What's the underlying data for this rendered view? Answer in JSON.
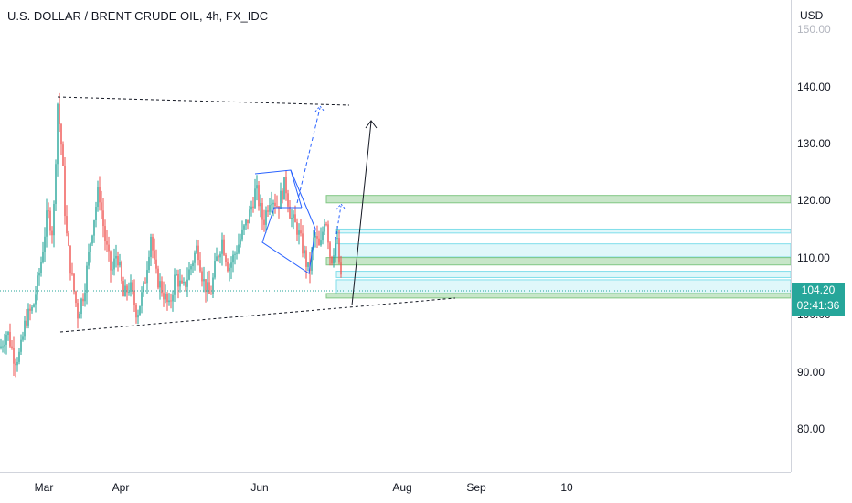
{
  "title": "U.S. DOLLAR / BRENT CRUDE OIL, 4h, FX_IDC",
  "currency": "USD",
  "current_price": "104.20",
  "countdown": "02:41:36",
  "colors": {
    "up": "#26a69a",
    "down": "#ef5350",
    "zone_green": "#a5d6a7",
    "zone_blue": "#b2ebf2",
    "accent": "#2962ff"
  },
  "chart_data": {
    "type": "candlestick",
    "title": "U.S. DOLLAR / BRENT CRUDE OIL, 4h, FX_IDC",
    "ylim": [
      73,
      153
    ],
    "y_ticks": [
      "140.00",
      "130.00",
      "120.00",
      "110.00",
      "100.00",
      "90.00",
      "80.00"
    ],
    "x_ticks": [
      "Mar",
      "Apr",
      "Jun",
      "Aug",
      "Sep",
      "10"
    ],
    "close_path": [
      {
        "t": 0,
        "v": 94
      },
      {
        "t": 8,
        "v": 97
      },
      {
        "t": 16,
        "v": 92
      },
      {
        "t": 22,
        "v": 93
      },
      {
        "t": 28,
        "v": 99
      },
      {
        "t": 36,
        "v": 101
      },
      {
        "t": 44,
        "v": 108
      },
      {
        "t": 52,
        "v": 118
      },
      {
        "t": 58,
        "v": 114
      },
      {
        "t": 63,
        "v": 137
      },
      {
        "t": 68,
        "v": 128
      },
      {
        "t": 72,
        "v": 115
      },
      {
        "t": 78,
        "v": 107
      },
      {
        "t": 85,
        "v": 100
      },
      {
        "t": 92,
        "v": 104
      },
      {
        "t": 100,
        "v": 114
      },
      {
        "t": 108,
        "v": 122
      },
      {
        "t": 115,
        "v": 113
      },
      {
        "t": 122,
        "v": 107
      },
      {
        "t": 128,
        "v": 111
      },
      {
        "t": 135,
        "v": 103
      },
      {
        "t": 142,
        "v": 105
      },
      {
        "t": 150,
        "v": 100
      },
      {
        "t": 158,
        "v": 105
      },
      {
        "t": 165,
        "v": 114
      },
      {
        "t": 170,
        "v": 107
      },
      {
        "t": 178,
        "v": 104
      },
      {
        "t": 185,
        "v": 101
      },
      {
        "t": 192,
        "v": 107
      },
      {
        "t": 200,
        "v": 104
      },
      {
        "t": 208,
        "v": 108
      },
      {
        "t": 216,
        "v": 112
      },
      {
        "t": 222,
        "v": 106
      },
      {
        "t": 230,
        "v": 103
      },
      {
        "t": 236,
        "v": 109
      },
      {
        "t": 243,
        "v": 113
      },
      {
        "t": 250,
        "v": 108
      },
      {
        "t": 258,
        "v": 111
      },
      {
        "t": 265,
        "v": 114
      },
      {
        "t": 272,
        "v": 117
      },
      {
        "t": 280,
        "v": 122
      },
      {
        "t": 288,
        "v": 116
      },
      {
        "t": 296,
        "v": 121
      },
      {
        "t": 304,
        "v": 119
      },
      {
        "t": 312,
        "v": 123
      },
      {
        "t": 318,
        "v": 117
      },
      {
        "t": 325,
        "v": 115
      },
      {
        "t": 332,
        "v": 111
      },
      {
        "t": 338,
        "v": 107
      },
      {
        "t": 344,
        "v": 114
      },
      {
        "t": 350,
        "v": 111
      },
      {
        "t": 356,
        "v": 118
      },
      {
        "t": 362,
        "v": 109
      },
      {
        "t": 368,
        "v": 114
      },
      {
        "t": 374,
        "v": 104
      }
    ],
    "zones": [
      {
        "color": "green",
        "from": 119.5,
        "to": 120.8
      },
      {
        "color": "blue",
        "from": 114.2,
        "to": 114.9
      },
      {
        "color": "blue",
        "from": 110.0,
        "to": 112.3
      },
      {
        "color": "green",
        "from": 108.6,
        "to": 109.9
      },
      {
        "color": "blue",
        "from": 106.4,
        "to": 107.5
      },
      {
        "color": "blue",
        "from": 103.5,
        "to": 106.0
      },
      {
        "color": "green",
        "from": 102.8,
        "to": 103.6
      }
    ]
  }
}
